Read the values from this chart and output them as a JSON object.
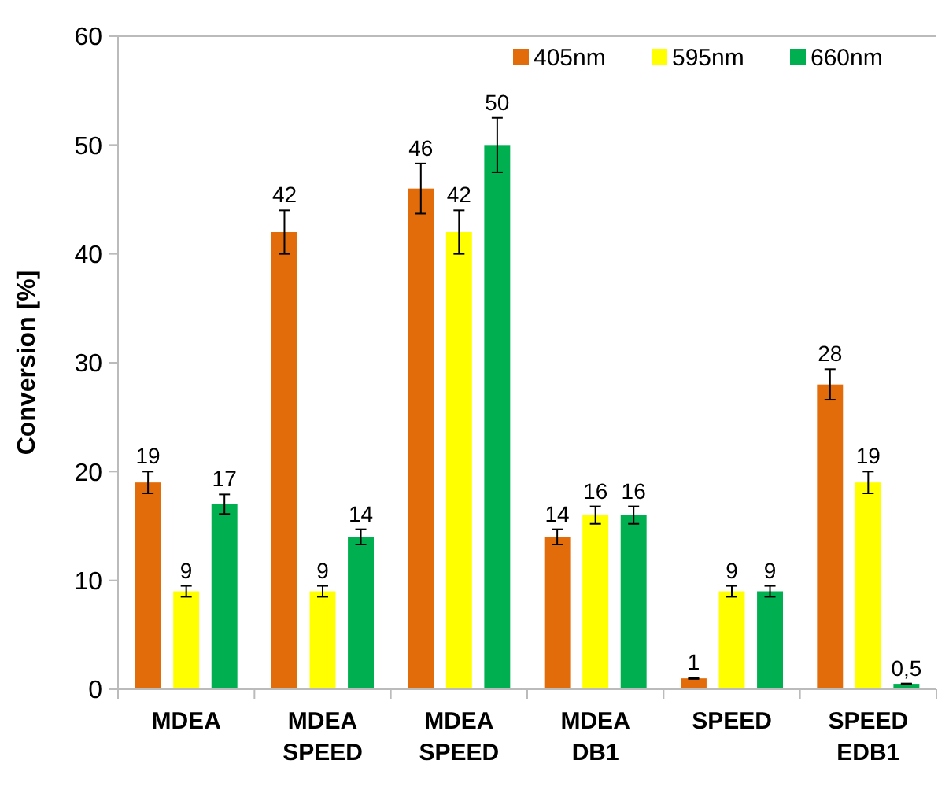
{
  "chart_data": {
    "type": "bar",
    "ylabel": "Conversion [%]",
    "categories": [
      "MDEA",
      "MDEA\nSPEED",
      "MDEA\nSPEED",
      "MDEA\nDB1",
      "SPEED",
      "SPEED\nEDB1"
    ],
    "ylim": [
      0,
      60
    ],
    "yticks": [
      0,
      10,
      20,
      30,
      40,
      50,
      60
    ],
    "grid": false,
    "legend": "top right",
    "series": [
      {
        "name": "405nm",
        "color": "#e36c0a",
        "values": [
          19,
          42,
          46,
          14,
          1,
          28
        ],
        "errors": [
          1,
          2,
          2.3,
          0.7,
          0.05,
          1.4
        ],
        "value_labels": [
          "19",
          "42",
          "46",
          "14",
          "1",
          "28"
        ]
      },
      {
        "name": "595nm",
        "color": "#ffff00",
        "values": [
          9,
          9,
          42,
          16,
          9,
          19
        ],
        "errors": [
          0.5,
          0.5,
          2,
          0.8,
          0.5,
          1
        ],
        "value_labels": [
          "9",
          "9",
          "42",
          "16",
          "9",
          "19"
        ]
      },
      {
        "name": "660nm",
        "color": "#00b050",
        "values": [
          17,
          14,
          50,
          16,
          9,
          0.5
        ],
        "errors": [
          0.9,
          0.7,
          2.5,
          0.8,
          0.5,
          0.03
        ],
        "value_labels": [
          "17",
          "14",
          "50",
          "16",
          "9",
          "0,5"
        ]
      }
    ]
  }
}
